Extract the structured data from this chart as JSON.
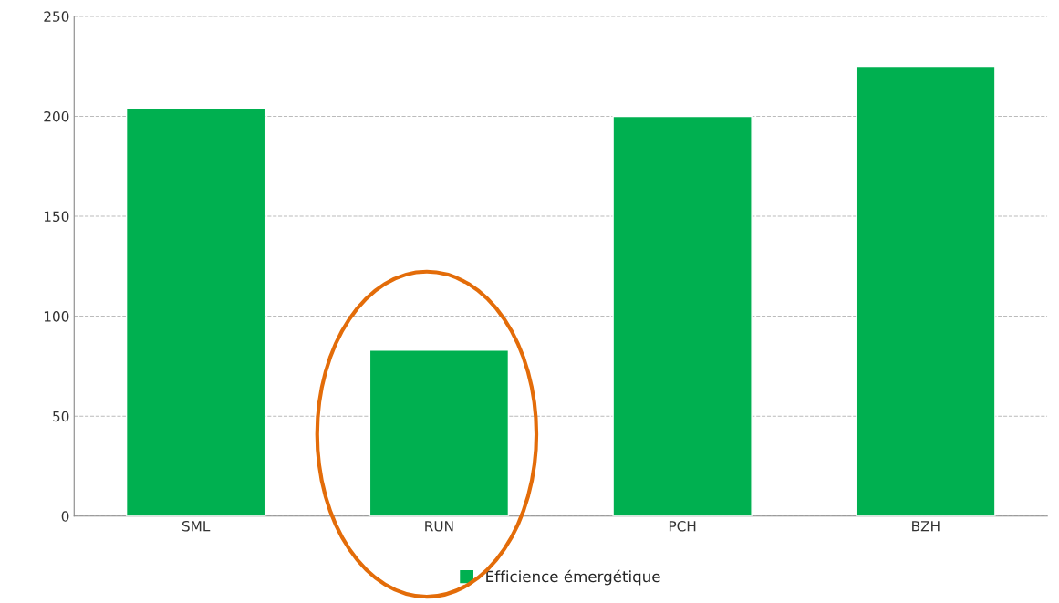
{
  "chart_data": {
    "type": "bar",
    "categories": [
      "SML",
      "RUN",
      "PCH",
      "BZH"
    ],
    "series": [
      {
        "name": "Efficience émergétique",
        "color": "#00b050",
        "values": [
          204,
          83,
          200,
          225
        ]
      }
    ],
    "ylim": [
      0,
      250
    ],
    "yticks": [
      0,
      50,
      100,
      150,
      200,
      250
    ],
    "grid": "y",
    "legend": "bottom"
  }
}
